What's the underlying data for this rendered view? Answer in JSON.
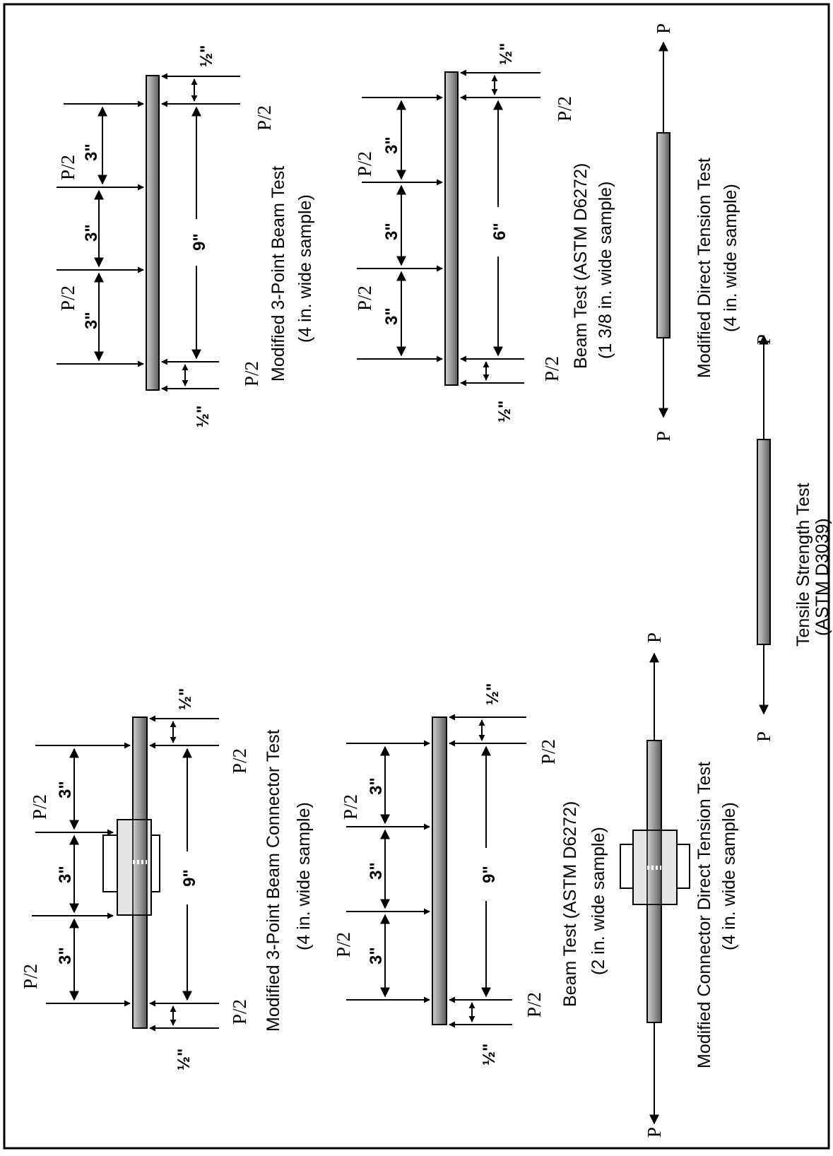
{
  "labels": {
    "half_load": "P/2",
    "load": "P",
    "three_in": "3\"",
    "nine_in": "9\"",
    "six_in": "6\"",
    "half_in": "½\""
  },
  "tests": {
    "mod3pt": {
      "title": "Modified 3-Point Beam Test",
      "subtitle": "(4 in. wide sample)"
    },
    "beam138": {
      "title": "Beam Test (ASTM D6272)",
      "subtitle": "(1 3/8 in. wide sample)"
    },
    "moddirect": {
      "title": "Modified Direct Tension Test",
      "subtitle": "(4 in. wide sample)"
    },
    "tensile": {
      "title": "Tensile Strength Test",
      "subtitle": "(ASTM D3039)"
    },
    "mod3ptconn": {
      "title": "Modified 3-Point Beam Connector Test",
      "subtitle": "(4 in. wide sample)"
    },
    "beam2": {
      "title": "Beam Test (ASTM D6272)",
      "subtitle": "(2 in. wide sample)"
    },
    "modconndirect": {
      "title": "Modified  Connector Direct Tension Test",
      "subtitle": "(4 in. wide sample)"
    }
  }
}
